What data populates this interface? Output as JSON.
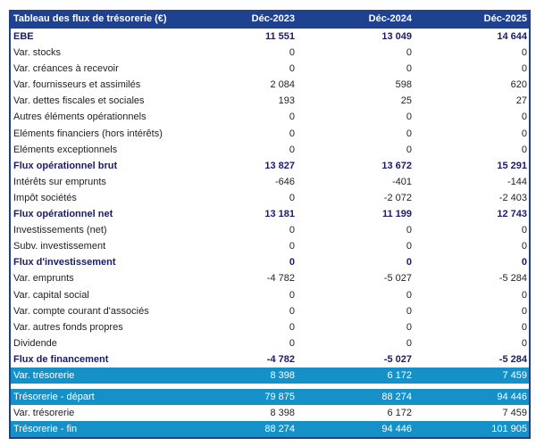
{
  "colors": {
    "header": "#1e4190",
    "highlight": "#1591c8",
    "bold_text": "#1a1a6e"
  },
  "header": {
    "title": "Tableau des flux de trésorerie (€)",
    "columns": [
      "Déc-2023",
      "Déc-2024",
      "Déc-2025"
    ]
  },
  "rows": [
    {
      "label": "EBE",
      "values": [
        "11 551",
        "13 049",
        "14 644"
      ],
      "style": "bold"
    },
    {
      "label": "Var. stocks",
      "values": [
        "0",
        "0",
        "0"
      ]
    },
    {
      "label": "Var. créances à recevoir",
      "values": [
        "0",
        "0",
        "0"
      ]
    },
    {
      "label": "Var. fournisseurs et assimilés",
      "values": [
        "2 084",
        "598",
        "620"
      ]
    },
    {
      "label": "Var. dettes fiscales et sociales",
      "values": [
        "193",
        "25",
        "27"
      ]
    },
    {
      "label": "Autres éléments opérationnels",
      "values": [
        "0",
        "0",
        "0"
      ]
    },
    {
      "label": "Eléments financiers (hors intérêts)",
      "values": [
        "0",
        "0",
        "0"
      ]
    },
    {
      "label": "Eléments exceptionnels",
      "values": [
        "0",
        "0",
        "0"
      ]
    },
    {
      "label": "Flux opérationnel brut",
      "values": [
        "13 827",
        "13 672",
        "15 291"
      ],
      "style": "bold"
    },
    {
      "label": "Intérêts sur emprunts",
      "values": [
        "-646",
        "-401",
        "-144"
      ]
    },
    {
      "label": "Impôt sociétés",
      "values": [
        "0",
        "-2 072",
        "-2 403"
      ]
    },
    {
      "label": "Flux opérationnel net",
      "values": [
        "13 181",
        "11 199",
        "12 743"
      ],
      "style": "bold"
    },
    {
      "label": "Investissements (net)",
      "values": [
        "0",
        "0",
        "0"
      ]
    },
    {
      "label": "Subv. investissement",
      "values": [
        "0",
        "0",
        "0"
      ]
    },
    {
      "label": "Flux d'investissement",
      "values": [
        "0",
        "0",
        "0"
      ],
      "style": "bold"
    },
    {
      "label": "Var. emprunts",
      "values": [
        "-4 782",
        "-5 027",
        "-5 284"
      ]
    },
    {
      "label": "Var. capital social",
      "values": [
        "0",
        "0",
        "0"
      ]
    },
    {
      "label": "Var. compte courant d'associés",
      "values": [
        "0",
        "0",
        "0"
      ]
    },
    {
      "label": "Var. autres fonds propres",
      "values": [
        "0",
        "0",
        "0"
      ]
    },
    {
      "label": "Dividende",
      "values": [
        "0",
        "0",
        "0"
      ]
    },
    {
      "label": "Flux de financement",
      "values": [
        "-4 782",
        "-5 027",
        "-5 284"
      ],
      "style": "bold"
    },
    {
      "label": "Var. trésorerie",
      "values": [
        "8 398",
        "6 172",
        "7 459"
      ],
      "style": "hl"
    }
  ],
  "summary": [
    {
      "label": "Trésorerie - départ",
      "values": [
        "79 875",
        "88 274",
        "94 446"
      ],
      "style": "hl"
    },
    {
      "label": "Var. trésorerie",
      "values": [
        "8 398",
        "6 172",
        "7 459"
      ]
    },
    {
      "label": "Trésorerie - fin",
      "values": [
        "88 274",
        "94 446",
        "101 905"
      ],
      "style": "hl"
    }
  ]
}
